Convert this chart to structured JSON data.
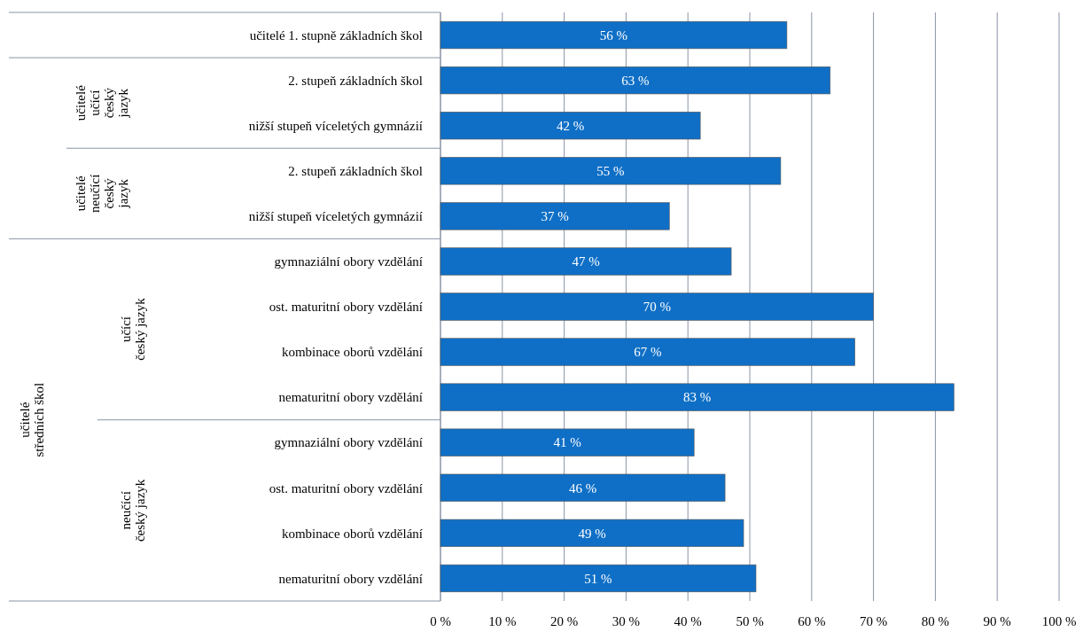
{
  "chart_data": {
    "type": "bar",
    "orientation": "horizontal",
    "categories": [
      "učitelé 1. stupně základních škol",
      "2. stupeň základních škol",
      "nižší stupeň víceletých gymnázií",
      "2. stupeň základních škol",
      "nižší stupeň víceletých gymnázií",
      "gymnaziální obory vzdělání",
      "ost. maturitní obory vzdělání",
      "kombinace oborů vzdělání",
      "nematuritní obory vzdělání",
      "gymnaziální obory vzdělání",
      "ost. maturitní obory vzdělání",
      "kombinace oborů vzdělání",
      "nematuritní obory vzdělání"
    ],
    "values": [
      56,
      63,
      42,
      55,
      37,
      47,
      70,
      67,
      83,
      41,
      46,
      49,
      51
    ],
    "value_labels": [
      "56 %",
      "63 %",
      "42 %",
      "55 %",
      "37 %",
      "47 %",
      "70 %",
      "67 %",
      "83 %",
      "41 %",
      "46 %",
      "49 %",
      "51 %"
    ],
    "color": "#0f6fc6",
    "xlim": [
      0,
      100
    ],
    "xticks": [
      {
        "value": 0,
        "label": "0 %"
      },
      {
        "value": 10,
        "label": "10 %"
      },
      {
        "value": 20,
        "label": "20 %"
      },
      {
        "value": 30,
        "label": "30 %"
      },
      {
        "value": 40,
        "label": "40 %"
      },
      {
        "value": 50,
        "label": "50 %"
      },
      {
        "value": 60,
        "label": "60 %"
      },
      {
        "value": 70,
        "label": "70 %"
      },
      {
        "value": 80,
        "label": "80 %"
      },
      {
        "value": 90,
        "label": "90 %"
      },
      {
        "value": 100,
        "label": "100 %"
      }
    ],
    "grid": "x",
    "annotations": [
      "učitelé učící český jazyk",
      "učitelé neučící český jazyk",
      "učící český jazyk",
      "neučící český jazyk",
      "učitelé středních škol"
    ]
  }
}
